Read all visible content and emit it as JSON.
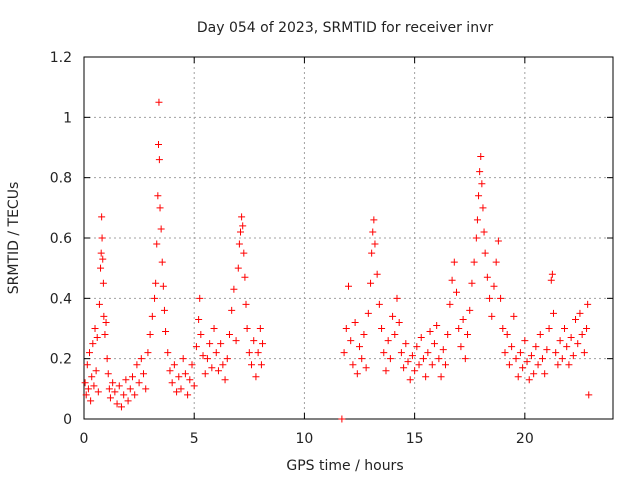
{
  "chart_data": {
    "type": "scatter",
    "title": "Day 054 of 2023, SRMTID for receiver invr",
    "xlabel": "GPS time / hours",
    "ylabel": "SRMTID / TECUs",
    "xlim": [
      0,
      24
    ],
    "ylim": [
      0,
      1.2
    ],
    "x_ticks": [
      0,
      5,
      10,
      15,
      20
    ],
    "x_tick_labels": [
      "0",
      "5",
      "10",
      "15",
      "20"
    ],
    "y_ticks": [
      0,
      0.2,
      0.4,
      0.6,
      0.8,
      1,
      1.2
    ],
    "y_tick_labels": [
      "0",
      "0.2",
      "0.4",
      "0.6",
      "0.8",
      "1",
      "1.2"
    ],
    "grid": true,
    "marker": "+",
    "marker_color": "#ff0000",
    "series": [
      {
        "name": "SRMTID",
        "points": [
          [
            0.05,
            0.12
          ],
          [
            0.1,
            0.08
          ],
          [
            0.15,
            0.18
          ],
          [
            0.2,
            0.1
          ],
          [
            0.25,
            0.22
          ],
          [
            0.3,
            0.06
          ],
          [
            0.35,
            0.14
          ],
          [
            0.4,
            0.25
          ],
          [
            0.45,
            0.11
          ],
          [
            0.5,
            0.3
          ],
          [
            0.55,
            0.16
          ],
          [
            0.6,
            0.27
          ],
          [
            0.65,
            0.09
          ],
          [
            0.7,
            0.38
          ],
          [
            0.75,
            0.5
          ],
          [
            0.78,
            0.55
          ],
          [
            0.8,
            0.67
          ],
          [
            0.82,
            0.6
          ],
          [
            0.85,
            0.53
          ],
          [
            0.88,
            0.45
          ],
          [
            0.9,
            0.34
          ],
          [
            0.95,
            0.28
          ],
          [
            1.0,
            0.32
          ],
          [
            1.05,
            0.2
          ],
          [
            1.1,
            0.15
          ],
          [
            1.15,
            0.1
          ],
          [
            1.2,
            0.07
          ],
          [
            1.3,
            0.12
          ],
          [
            1.4,
            0.09
          ],
          [
            1.5,
            0.05
          ],
          [
            1.6,
            0.11
          ],
          [
            1.7,
            0.04
          ],
          [
            1.8,
            0.08
          ],
          [
            1.9,
            0.13
          ],
          [
            2.0,
            0.06
          ],
          [
            2.1,
            0.1
          ],
          [
            2.2,
            0.14
          ],
          [
            2.3,
            0.08
          ],
          [
            2.4,
            0.18
          ],
          [
            2.5,
            0.12
          ],
          [
            2.6,
            0.2
          ],
          [
            2.7,
            0.15
          ],
          [
            2.8,
            0.1
          ],
          [
            2.9,
            0.22
          ],
          [
            3.0,
            0.28
          ],
          [
            3.1,
            0.34
          ],
          [
            3.2,
            0.4
          ],
          [
            3.25,
            0.45
          ],
          [
            3.3,
            0.58
          ],
          [
            3.35,
            0.74
          ],
          [
            3.38,
            0.91
          ],
          [
            3.4,
            1.05
          ],
          [
            3.42,
            0.86
          ],
          [
            3.45,
            0.7
          ],
          [
            3.5,
            0.63
          ],
          [
            3.55,
            0.52
          ],
          [
            3.6,
            0.44
          ],
          [
            3.65,
            0.36
          ],
          [
            3.7,
            0.29
          ],
          [
            3.8,
            0.22
          ],
          [
            3.9,
            0.16
          ],
          [
            4.0,
            0.12
          ],
          [
            4.1,
            0.18
          ],
          [
            4.2,
            0.09
          ],
          [
            4.3,
            0.14
          ],
          [
            4.4,
            0.1
          ],
          [
            4.5,
            0.2
          ],
          [
            4.6,
            0.15
          ],
          [
            4.7,
            0.08
          ],
          [
            4.8,
            0.13
          ],
          [
            4.9,
            0.18
          ],
          [
            5.0,
            0.11
          ],
          [
            5.1,
            0.24
          ],
          [
            5.2,
            0.33
          ],
          [
            5.25,
            0.4
          ],
          [
            5.3,
            0.28
          ],
          [
            5.4,
            0.21
          ],
          [
            5.5,
            0.15
          ],
          [
            5.6,
            0.2
          ],
          [
            5.7,
            0.25
          ],
          [
            5.8,
            0.17
          ],
          [
            5.9,
            0.3
          ],
          [
            6.0,
            0.22
          ],
          [
            6.1,
            0.16
          ],
          [
            6.2,
            0.25
          ],
          [
            6.3,
            0.18
          ],
          [
            6.4,
            0.13
          ],
          [
            6.5,
            0.2
          ],
          [
            6.6,
            0.28
          ],
          [
            6.7,
            0.36
          ],
          [
            6.8,
            0.43
          ],
          [
            6.9,
            0.26
          ],
          [
            7.0,
            0.5
          ],
          [
            7.05,
            0.58
          ],
          [
            7.1,
            0.62
          ],
          [
            7.15,
            0.67
          ],
          [
            7.2,
            0.64
          ],
          [
            7.25,
            0.55
          ],
          [
            7.3,
            0.47
          ],
          [
            7.35,
            0.38
          ],
          [
            7.4,
            0.3
          ],
          [
            7.5,
            0.22
          ],
          [
            7.6,
            0.18
          ],
          [
            7.7,
            0.26
          ],
          [
            7.8,
            0.14
          ],
          [
            7.9,
            0.22
          ],
          [
            8.0,
            0.3
          ],
          [
            8.05,
            0.18
          ],
          [
            8.1,
            0.25
          ],
          [
            11.7,
            0.0
          ],
          [
            11.8,
            0.22
          ],
          [
            11.9,
            0.3
          ],
          [
            12.0,
            0.44
          ],
          [
            12.1,
            0.26
          ],
          [
            12.2,
            0.18
          ],
          [
            12.3,
            0.32
          ],
          [
            12.4,
            0.15
          ],
          [
            12.5,
            0.24
          ],
          [
            12.6,
            0.2
          ],
          [
            12.7,
            0.28
          ],
          [
            12.8,
            0.17
          ],
          [
            12.9,
            0.35
          ],
          [
            13.0,
            0.45
          ],
          [
            13.05,
            0.55
          ],
          [
            13.1,
            0.62
          ],
          [
            13.15,
            0.66
          ],
          [
            13.2,
            0.58
          ],
          [
            13.3,
            0.48
          ],
          [
            13.4,
            0.38
          ],
          [
            13.5,
            0.3
          ],
          [
            13.6,
            0.22
          ],
          [
            13.7,
            0.16
          ],
          [
            13.8,
            0.26
          ],
          [
            13.9,
            0.2
          ],
          [
            14.0,
            0.34
          ],
          [
            14.1,
            0.28
          ],
          [
            14.2,
            0.4
          ],
          [
            14.3,
            0.32
          ],
          [
            14.4,
            0.22
          ],
          [
            14.5,
            0.17
          ],
          [
            14.6,
            0.25
          ],
          [
            14.7,
            0.19
          ],
          [
            14.8,
            0.13
          ],
          [
            14.9,
            0.21
          ],
          [
            15.0,
            0.16
          ],
          [
            15.1,
            0.24
          ],
          [
            15.2,
            0.18
          ],
          [
            15.3,
            0.27
          ],
          [
            15.4,
            0.2
          ],
          [
            15.5,
            0.14
          ],
          [
            15.6,
            0.22
          ],
          [
            15.7,
            0.29
          ],
          [
            15.8,
            0.18
          ],
          [
            15.9,
            0.25
          ],
          [
            16.0,
            0.31
          ],
          [
            16.1,
            0.2
          ],
          [
            16.2,
            0.14
          ],
          [
            16.3,
            0.23
          ],
          [
            16.4,
            0.18
          ],
          [
            16.5,
            0.28
          ],
          [
            16.6,
            0.38
          ],
          [
            16.7,
            0.46
          ],
          [
            16.8,
            0.52
          ],
          [
            16.9,
            0.42
          ],
          [
            17.0,
            0.3
          ],
          [
            17.1,
            0.24
          ],
          [
            17.2,
            0.33
          ],
          [
            17.3,
            0.2
          ],
          [
            17.4,
            0.28
          ],
          [
            17.5,
            0.36
          ],
          [
            17.6,
            0.45
          ],
          [
            17.7,
            0.52
          ],
          [
            17.8,
            0.6
          ],
          [
            17.85,
            0.66
          ],
          [
            17.9,
            0.74
          ],
          [
            17.95,
            0.82
          ],
          [
            18.0,
            0.87
          ],
          [
            18.05,
            0.78
          ],
          [
            18.1,
            0.7
          ],
          [
            18.15,
            0.62
          ],
          [
            18.2,
            0.55
          ],
          [
            18.3,
            0.47
          ],
          [
            18.4,
            0.4
          ],
          [
            18.5,
            0.34
          ],
          [
            18.6,
            0.44
          ],
          [
            18.7,
            0.52
          ],
          [
            18.8,
            0.59
          ],
          [
            18.9,
            0.4
          ],
          [
            19.0,
            0.3
          ],
          [
            19.1,
            0.22
          ],
          [
            19.2,
            0.28
          ],
          [
            19.3,
            0.18
          ],
          [
            19.4,
            0.24
          ],
          [
            19.5,
            0.34
          ],
          [
            19.6,
            0.2
          ],
          [
            19.7,
            0.14
          ],
          [
            19.8,
            0.22
          ],
          [
            19.9,
            0.17
          ],
          [
            20.0,
            0.26
          ],
          [
            20.1,
            0.19
          ],
          [
            20.2,
            0.13
          ],
          [
            20.3,
            0.21
          ],
          [
            20.4,
            0.15
          ],
          [
            20.5,
            0.24
          ],
          [
            20.6,
            0.18
          ],
          [
            20.7,
            0.28
          ],
          [
            20.8,
            0.2
          ],
          [
            20.9,
            0.15
          ],
          [
            21.0,
            0.23
          ],
          [
            21.1,
            0.3
          ],
          [
            21.2,
            0.46
          ],
          [
            21.25,
            0.48
          ],
          [
            21.3,
            0.35
          ],
          [
            21.4,
            0.22
          ],
          [
            21.5,
            0.18
          ],
          [
            21.6,
            0.26
          ],
          [
            21.7,
            0.2
          ],
          [
            21.8,
            0.3
          ],
          [
            21.9,
            0.24
          ],
          [
            22.0,
            0.18
          ],
          [
            22.1,
            0.27
          ],
          [
            22.2,
            0.21
          ],
          [
            22.3,
            0.33
          ],
          [
            22.4,
            0.25
          ],
          [
            22.5,
            0.35
          ],
          [
            22.6,
            0.28
          ],
          [
            22.7,
            0.22
          ],
          [
            22.8,
            0.3
          ],
          [
            22.85,
            0.38
          ],
          [
            22.9,
            0.08
          ]
        ]
      }
    ]
  }
}
